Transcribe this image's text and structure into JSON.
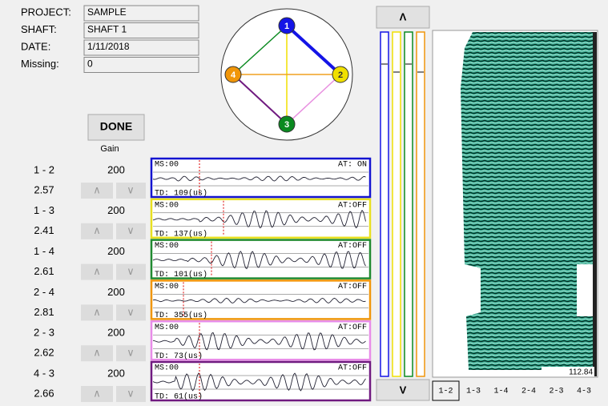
{
  "project": {
    "fields": [
      {
        "label": "PROJECT:",
        "value": "SAMPLE"
      },
      {
        "label": "SHAFT:",
        "value": "SHAFT 1"
      },
      {
        "label": "DATE:",
        "value": "1/11/2018"
      },
      {
        "label": "Missing:",
        "value": "0"
      }
    ]
  },
  "diagram": {
    "nodes": [
      {
        "label": "1",
        "color": "#1414e6"
      },
      {
        "label": "2",
        "color": "#f0e000"
      },
      {
        "label": "3",
        "color": "#0a8a20"
      },
      {
        "label": "4",
        "color": "#f0960a"
      }
    ]
  },
  "controls": {
    "done": "DONE",
    "gain": "Gain",
    "up": "Λ",
    "down": "V",
    "small_up": "∧",
    "small_down": "∨",
    "scale": "112.84"
  },
  "rows": [
    {
      "pair": "1 - 2",
      "gain": "200",
      "depth": "2.57",
      "ms": "MS:00",
      "at": "AT: ON",
      "td": "TD: 109(us)",
      "color": "#1414d0"
    },
    {
      "pair": "1 - 3",
      "gain": "200",
      "depth": "2.41",
      "ms": "MS:00",
      "at": "AT:OFF",
      "td": "TD: 137(us)",
      "color": "#e8e020"
    },
    {
      "pair": "1 - 4",
      "gain": "200",
      "depth": "2.61",
      "ms": "MS:00",
      "at": "AT:OFF",
      "td": "TD: 101(us)",
      "color": "#208a30"
    },
    {
      "pair": "2 - 4",
      "gain": "200",
      "depth": "2.81",
      "ms": "MS:00",
      "at": "AT:OFF",
      "td": "TD: 355(us)",
      "color": "#f0960a"
    },
    {
      "pair": "2 - 3",
      "gain": "200",
      "depth": "2.62",
      "ms": "MS:00",
      "at": "AT:OFF",
      "td": "TD: 73(us)",
      "color": "#e88ce8"
    },
    {
      "pair": "4 - 3",
      "gain": "200",
      "depth": "2.66",
      "ms": "MS:00",
      "at": "AT:OFF",
      "td": "TD: 61(us)",
      "color": "#701a80"
    }
  ],
  "tabs": [
    "1-2",
    "1-3",
    "1-4",
    "2-4",
    "2-3",
    "4-3"
  ]
}
